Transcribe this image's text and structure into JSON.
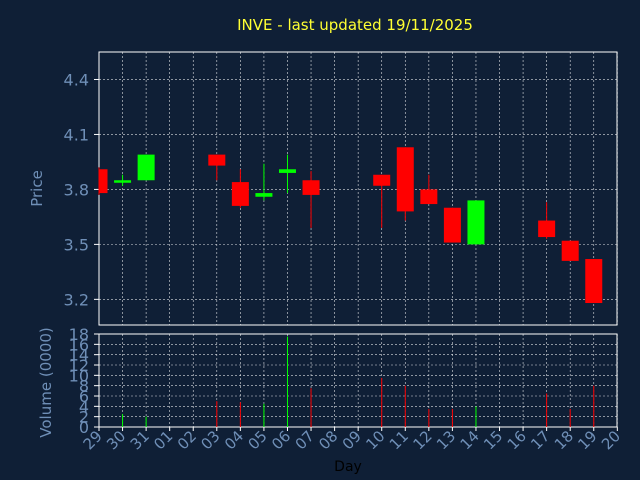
{
  "chart_data": {
    "type": "candlestick",
    "title": "INVE - last updated 19/11/2025",
    "xlabel": "Day",
    "colors": {
      "background": "#0f1f36",
      "title": "#ffff33",
      "axis_text": "#6f8fb7",
      "up": "#00ff00",
      "down": "#ff0000",
      "grid": "#ffffff"
    },
    "x_ticks": [
      "29",
      "30",
      "31",
      "01",
      "02",
      "03",
      "04",
      "05",
      "06",
      "07",
      "08",
      "09",
      "10",
      "11",
      "12",
      "13",
      "14",
      "15",
      "16",
      "17",
      "18",
      "19",
      "20"
    ],
    "price_panel": {
      "ylabel": "Price",
      "ylim": [
        3.06,
        4.55
      ],
      "yticks": [
        3.2,
        3.5,
        3.8,
        4.1,
        4.4
      ],
      "ytick_labels": [
        "3.2",
        "3.5",
        "3.8",
        "4.1",
        "4.4"
      ]
    },
    "volume_panel": {
      "ylabel": "Volume (0000)",
      "ylim": [
        0,
        18
      ],
      "yticks": [
        0,
        2,
        4,
        6,
        8,
        10,
        12,
        14,
        16,
        18
      ],
      "ytick_labels": [
        "0",
        "2",
        "4",
        "6",
        "8",
        "10",
        "12",
        "14",
        "16",
        "18"
      ]
    },
    "candles": [
      {
        "day": "29",
        "open": 3.91,
        "high": 3.92,
        "low": 3.77,
        "close": 3.78,
        "volume": 0.0
      },
      {
        "day": "30",
        "open": 3.84,
        "high": 3.88,
        "low": 3.82,
        "close": 3.85,
        "volume": 2.5
      },
      {
        "day": "31",
        "open": 3.85,
        "high": 3.99,
        "low": 3.85,
        "close": 3.99,
        "volume": 2.0
      },
      {
        "day": "03",
        "open": 3.99,
        "high": 3.99,
        "low": 3.85,
        "close": 3.93,
        "volume": 5.0
      },
      {
        "day": "04",
        "open": 3.84,
        "high": 3.91,
        "low": 3.7,
        "close": 3.71,
        "volume": 4.8
      },
      {
        "day": "05",
        "open": 3.76,
        "high": 3.94,
        "low": 3.74,
        "close": 3.78,
        "volume": 4.5
      },
      {
        "day": "06",
        "open": 3.89,
        "high": 3.99,
        "low": 3.78,
        "close": 3.91,
        "volume": 17.5
      },
      {
        "day": "07",
        "open": 3.85,
        "high": 3.9,
        "low": 3.59,
        "close": 3.77,
        "volume": 7.5
      },
      {
        "day": "10",
        "open": 3.88,
        "high": 3.88,
        "low": 3.59,
        "close": 3.82,
        "volume": 9.5
      },
      {
        "day": "11",
        "open": 4.03,
        "high": 4.03,
        "low": 3.63,
        "close": 3.68,
        "volume": 8.0
      },
      {
        "day": "12",
        "open": 3.8,
        "high": 3.88,
        "low": 3.72,
        "close": 3.72,
        "volume": 3.5
      },
      {
        "day": "13",
        "open": 3.7,
        "high": 3.7,
        "low": 3.51,
        "close": 3.51,
        "volume": 3.5
      },
      {
        "day": "14",
        "open": 3.5,
        "high": 3.74,
        "low": 3.5,
        "close": 3.74,
        "volume": 4.0
      },
      {
        "day": "17",
        "open": 3.63,
        "high": 3.73,
        "low": 3.53,
        "close": 3.54,
        "volume": 6.5
      },
      {
        "day": "18",
        "open": 3.52,
        "high": 3.52,
        "low": 3.41,
        "close": 3.41,
        "volume": 3.5
      },
      {
        "day": "19",
        "open": 3.42,
        "high": 3.42,
        "low": 3.18,
        "close": 3.18,
        "volume": 8.0
      }
    ]
  }
}
